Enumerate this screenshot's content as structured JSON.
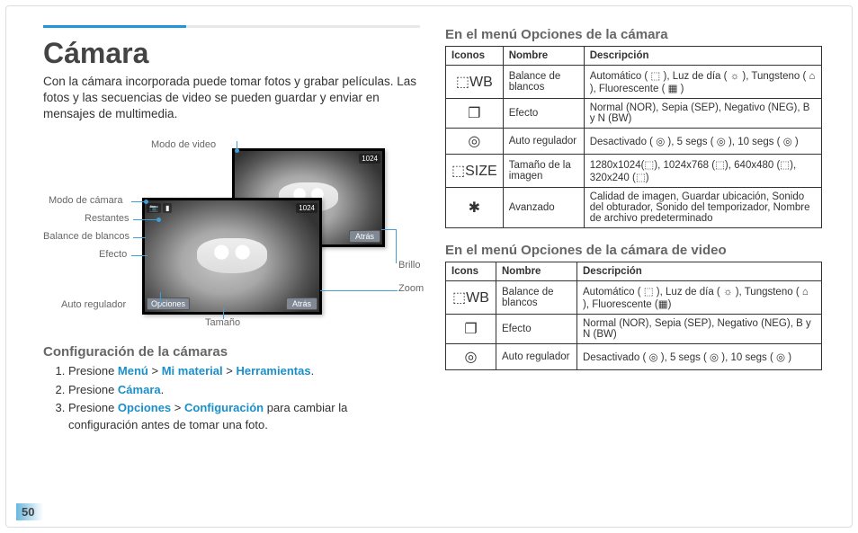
{
  "title": "Cámara",
  "intro": "Con la cámara incorporada puede tomar fotos y grabar películas. Las fotos y las secuencias de video se pueden guardar y enviar en mensajes de multimedia.",
  "callouts": {
    "modo_video": "Modo de video",
    "modo_camara": "Modo de cámara",
    "restantes": "Restantes",
    "balance": "Balance de blancos",
    "efecto": "Efecto",
    "auto_reg": "Auto regulador",
    "tamano": "Tamaño",
    "brillo": "Brillo",
    "zoom": "Zoom"
  },
  "screens": {
    "opciones_label": "Opciones",
    "atras_label": "Atrás",
    "res_chip": "1024"
  },
  "config": {
    "heading": "Configuración de la cámaras",
    "step1_a": "Presione ",
    "step1_b": "Menú",
    "step1_c": " > ",
    "step1_d": "Mi material",
    "step1_e": " > ",
    "step1_f": "Herramientas",
    "step1_g": ".",
    "step2_a": "Presione ",
    "step2_b": "Cámara",
    "step2_c": ".",
    "step3_a": "Presione ",
    "step3_b": "Opciones",
    "step3_c": " > ",
    "step3_d": "Configuración",
    "step3_e": " para cambiar la configuración antes de tomar una foto."
  },
  "camera_menu": {
    "heading": "En el menú Opciones de la cámara",
    "headers": {
      "iconos": "Iconos",
      "nombre": "Nombre",
      "desc": "Descripción"
    },
    "rows": [
      {
        "icon": "⬚WB",
        "nombre": "Balance de blancos",
        "desc": "Automático ( ⬚ ), Luz de día ( ☼ ), Tungsteno ( ⌂ ), Fluorescente ( ▦ )"
      },
      {
        "icon": "❐",
        "nombre": "Efecto",
        "desc": "Normal (NOR), Sepia (SEP), Negativo (NEG), B y N (BW)"
      },
      {
        "icon": "◎",
        "nombre": "Auto regulador",
        "desc": "Desactivado ( ◎ ), 5 segs ( ◎ ), 10 segs ( ◎ )"
      },
      {
        "icon": "⬚SIZE",
        "nombre": "Tamaño de la imagen",
        "desc": "1280x1024(⬚), 1024x768 (⬚), 640x480 (⬚), 320x240 (⬚)"
      },
      {
        "icon": "✱",
        "nombre": "Avanzado",
        "desc": "Calidad de imagen, Guardar ubicación, Sonido del obturador, Sonido del temporizador, Nombre de archivo predeterminado"
      }
    ]
  },
  "video_menu": {
    "heading": "En el menú Opciones de la cámara de video",
    "headers": {
      "iconos": "Icons",
      "nombre": "Nombre",
      "desc": "Descripción"
    },
    "rows": [
      {
        "icon": "⬚WB",
        "nombre": "Balance de blancos",
        "desc": "Automático ( ⬚ ), Luz de día ( ☼ ), Tungsteno ( ⌂ ), Fluorescente (▦)"
      },
      {
        "icon": "❐",
        "nombre": "Efecto",
        "desc": "Normal (NOR), Sepia (SEP), Negativo (NEG), B y N (BW)"
      },
      {
        "icon": "◎",
        "nombre": "Auto regulador",
        "desc": "Desactivado ( ◎ ), 5 segs ( ◎ ), 10 segs ( ◎ )"
      }
    ]
  },
  "page_number": "50",
  "colors": {
    "accent": "#2196d6",
    "text": "#333333",
    "muted": "#666666",
    "border": "#333333"
  }
}
